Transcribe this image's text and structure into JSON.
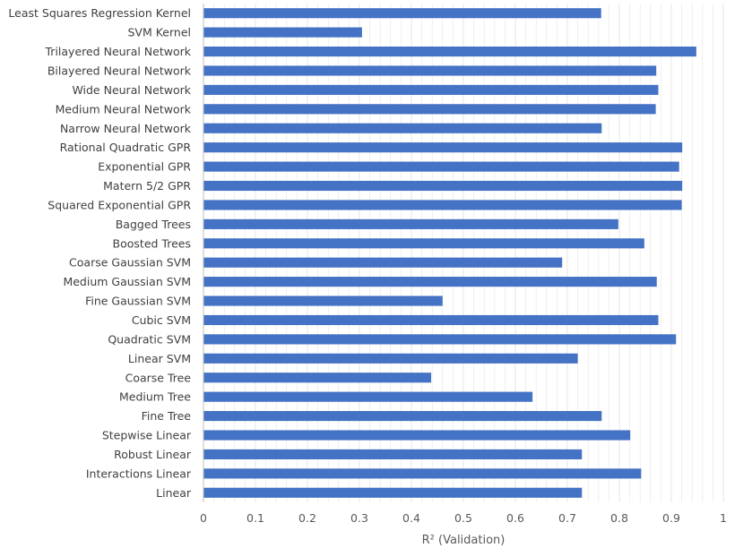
{
  "chart_data": {
    "type": "bar",
    "orientation": "horizontal",
    "categories": [
      "Least Squares Regression Kernel",
      "SVM Kernel",
      "Trilayered Neural Network",
      "Bilayered Neural Network",
      "Wide Neural Network",
      "Medium Neural Network",
      "Narrow Neural Network",
      "Rational Quadratic GPR",
      "Exponential GPR",
      "Matern 5/2 GPR",
      "Squared Exponential GPR",
      "Bagged Trees",
      "Boosted Trees",
      "Coarse Gaussian SVM",
      "Medium Gaussian SVM",
      "Fine Gaussian SVM",
      "Cubic SVM",
      "Quadratic SVM",
      "Linear SVM",
      "Coarse Tree",
      "Medium Tree",
      "Fine Tree",
      "Stepwise Linear",
      "Robust Linear",
      "Interactions Linear",
      "Linear"
    ],
    "values": [
      0.765,
      0.305,
      0.948,
      0.871,
      0.875,
      0.87,
      0.766,
      0.921,
      0.915,
      0.921,
      0.92,
      0.798,
      0.848,
      0.69,
      0.872,
      0.46,
      0.875,
      0.909,
      0.72,
      0.438,
      0.633,
      0.766,
      0.821,
      0.728,
      0.842,
      0.728
    ],
    "xlabel": "R² (Validation)",
    "ylabel": "",
    "xlim": [
      0,
      1
    ],
    "xticks": [
      "0",
      "0.1",
      "0.2",
      "0.3",
      "0.4",
      "0.5",
      "0.6",
      "0.7",
      "0.8",
      "0.9",
      "1"
    ],
    "grid": "vertical",
    "bar_color": "#4472c4",
    "grid_color": "#e6e6e6"
  }
}
